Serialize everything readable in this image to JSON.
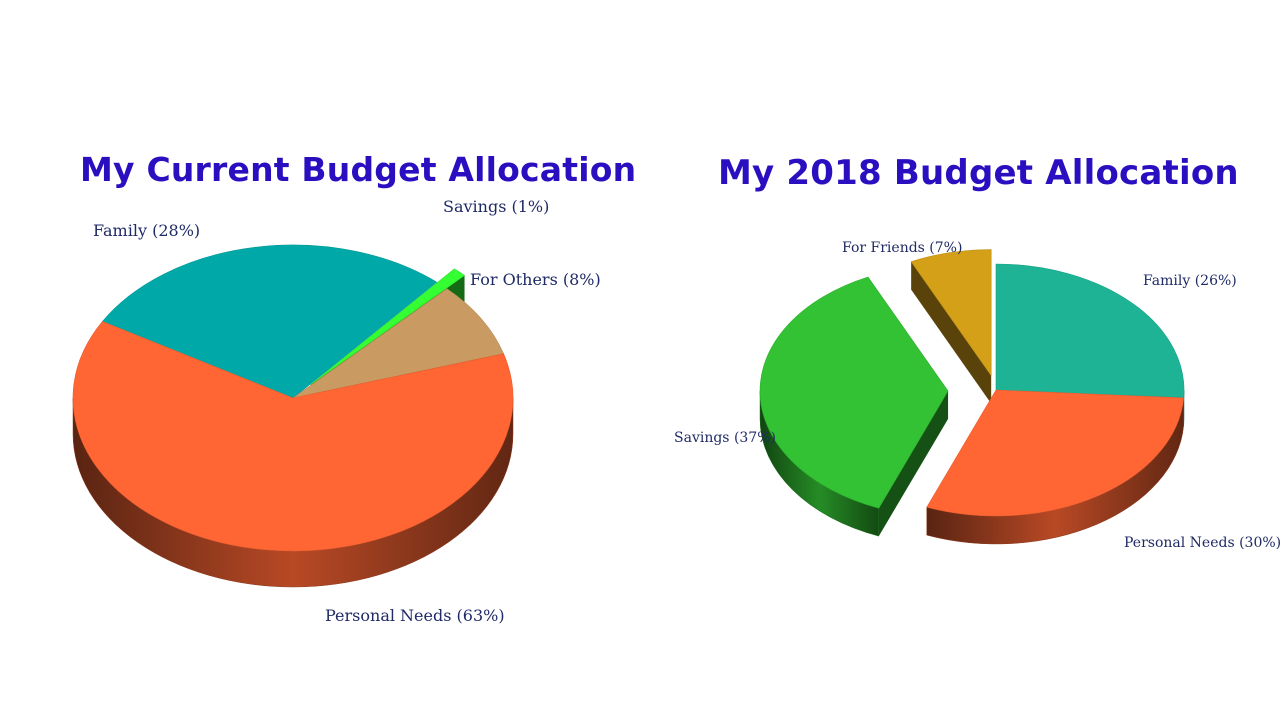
{
  "colors": {
    "title": "#2a0fc0",
    "label": "#1f2a66"
  },
  "chart_data": [
    {
      "type": "pie",
      "title": "My Current Budget Allocation",
      "three_d": true,
      "slices": [
        {
          "label": "Family (28%)",
          "name": "Family",
          "value": 28,
          "color": "#00a9a8",
          "exploded": false
        },
        {
          "label": "Savings (1%)",
          "name": "Savings",
          "value": 1,
          "color": "#33ff33",
          "exploded": true
        },
        {
          "label": "For Others (8%)",
          "name": "For Others",
          "value": 8,
          "color": "#c99a61",
          "exploded": false
        },
        {
          "label": "Personal Needs (63%)",
          "name": "Personal Needs",
          "value": 63,
          "color": "#ff6633",
          "exploded": false
        }
      ]
    },
    {
      "type": "pie",
      "title": "My 2018 Budget Allocation",
      "three_d": true,
      "slices": [
        {
          "label": "Family (26%)",
          "name": "Family",
          "value": 26,
          "color": "#1db394",
          "exploded": false
        },
        {
          "label": "Personal Needs (30%)",
          "name": "Personal Needs",
          "value": 30,
          "color": "#ff6633",
          "exploded": false
        },
        {
          "label": "Savings (37%)",
          "name": "Savings",
          "value": 37,
          "color": "#33c233",
          "exploded": true
        },
        {
          "label": "For Friends (7%)",
          "name": "For Friends",
          "value": 7,
          "color": "#d4a017",
          "exploded": true
        }
      ]
    }
  ]
}
